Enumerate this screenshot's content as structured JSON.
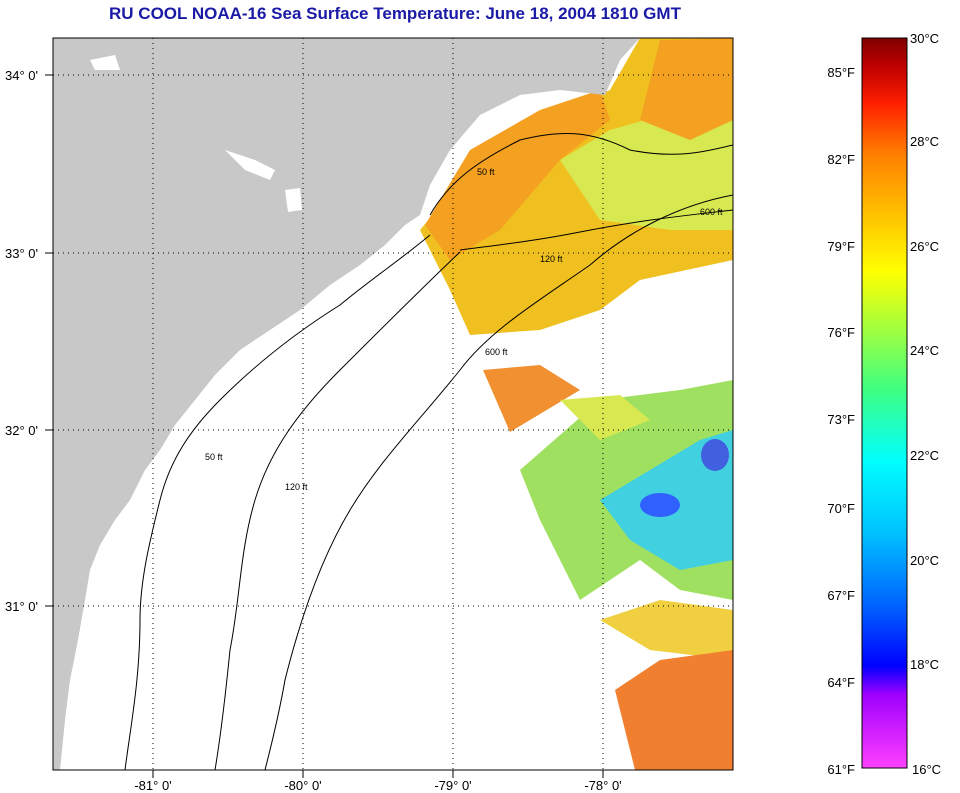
{
  "title": "RU COOL  NOAA-16  Sea Surface Temperature:  June 18, 2004 1810 GMT",
  "map": {
    "lat_labels": [
      "34° 0'",
      "33° 0'",
      "32° 0'",
      "31° 0'"
    ],
    "lon_labels": [
      "-81° 0'",
      "-80° 0'",
      "-79° 0'",
      "-78° 0'"
    ],
    "contours": [
      {
        "label": "50 ft",
        "depth": 50
      },
      {
        "label": "120 ft",
        "depth": 120
      },
      {
        "label": "600 ft",
        "depth": 600
      }
    ],
    "colors": {
      "land": "#c8c8c8",
      "cloud_or_no_data": "#ffffff",
      "grid": "#000000"
    }
  },
  "colorbar": {
    "fahrenheit_labels": [
      "85°F",
      "82°F",
      "79°F",
      "76°F",
      "73°F",
      "70°F",
      "67°F",
      "64°F",
      "61°F"
    ],
    "celsius_labels": [
      "30°C",
      "28°C",
      "26°C",
      "24°C",
      "22°C",
      "20°C",
      "18°C",
      "16°C"
    ],
    "range_celsius": [
      16,
      30
    ],
    "stops": [
      "#ff40ff",
      "#a000ff",
      "#0000ff",
      "#00a0ff",
      "#00ffff",
      "#40ff80",
      "#a0ff40",
      "#ffff00",
      "#ffc000",
      "#ff8000",
      "#ff2000",
      "#c00000",
      "#800000"
    ]
  }
}
